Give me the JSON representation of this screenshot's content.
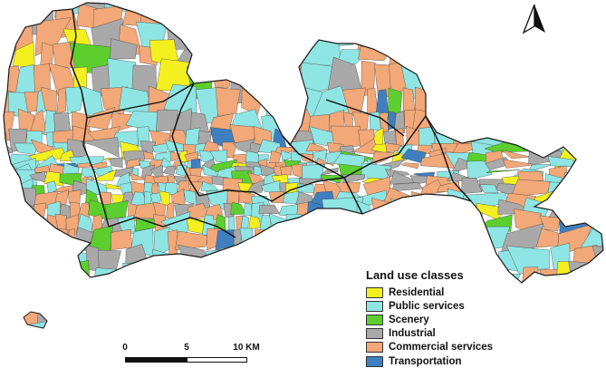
{
  "legend": {
    "title": "Land use classes",
    "items": [
      {
        "label": "Residential",
        "color": "#f4f01f"
      },
      {
        "label": "Public services",
        "color": "#8ee5e3"
      },
      {
        "label": "Scenery",
        "color": "#5ccf2e"
      },
      {
        "label": "Industrial",
        "color": "#a9a9a9"
      },
      {
        "label": "Commercial services",
        "color": "#f2a878"
      },
      {
        "label": "Transportation",
        "color": "#3f7fbf"
      }
    ]
  },
  "scalebar": {
    "label_0": "0",
    "label_5": "5",
    "label_10": "10 KM"
  },
  "north_arrow": {
    "icon": "north-arrow-icon"
  },
  "map": {
    "border_color": "#1b1b1b",
    "cell_line_color": "#3a3a3a"
  }
}
